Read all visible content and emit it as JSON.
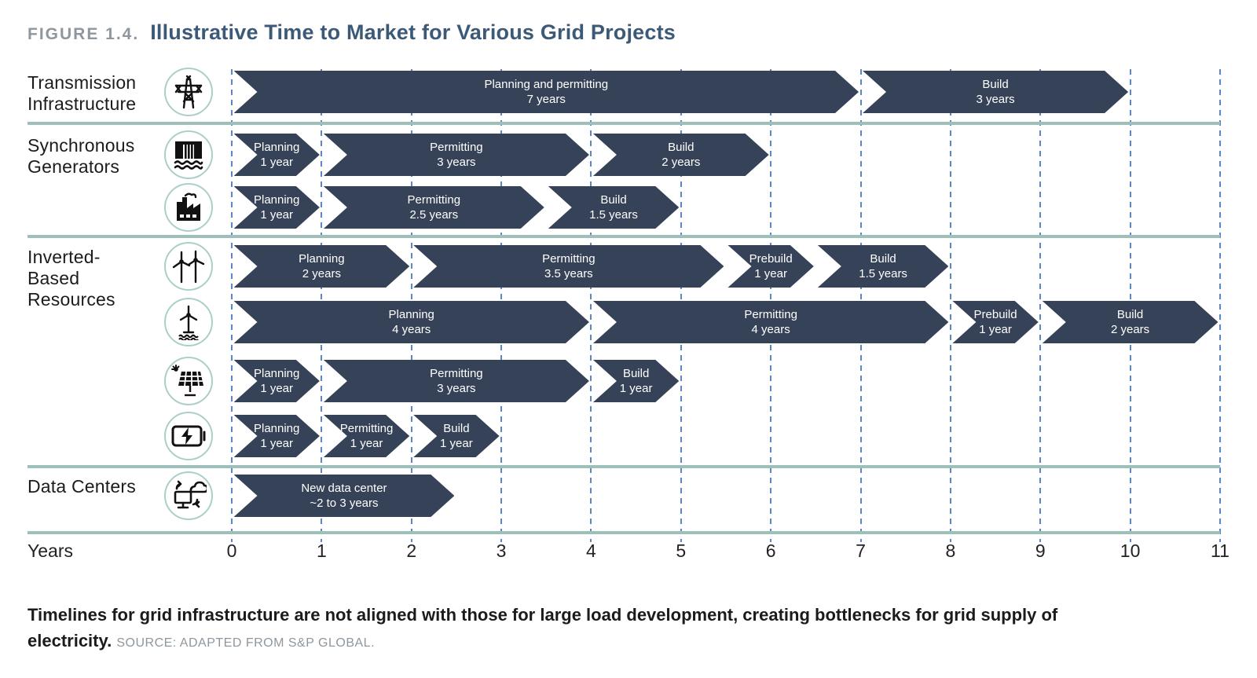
{
  "figure": {
    "label": "FIGURE 1.4.",
    "title": "Illustrative Time to Market for Various Grid Projects"
  },
  "axis": {
    "label": "Years",
    "ticks": [
      0,
      1,
      2,
      3,
      4,
      5,
      6,
      7,
      8,
      9,
      10,
      11
    ]
  },
  "caption": {
    "bold": "Timelines for grid infrastructure are not aligned with those for large load development, creating bottlenecks for grid supply of electricity.",
    "source": "SOURCE: ADAPTED FROM S&P GLOBAL."
  },
  "colors": {
    "bar": "#364257",
    "gridline": "#5b87c5",
    "separator": "#9fbfba",
    "title": "#3c5a78",
    "muted_gray": "#8e979e",
    "icon_ring": "#aacfc9"
  },
  "chart_data": {
    "type": "gantt-timeline",
    "x_unit": "years",
    "xlim": [
      0,
      11
    ],
    "grid": true,
    "groups": [
      {
        "label": "Transmission Infrastructure",
        "label_lines": [
          "Transmission",
          "Infrastructure"
        ],
        "rows": [
          {
            "icon": "transmission-tower-icon",
            "segments": [
              {
                "label": "Planning and permitting",
                "duration_label": "7 years",
                "start": 0,
                "end": 7
              },
              {
                "label": "Build",
                "duration_label": "3 years",
                "start": 7,
                "end": 10
              }
            ]
          }
        ]
      },
      {
        "label": "Synchronous Generators",
        "label_lines": [
          "Synchronous",
          "Generators"
        ],
        "rows": [
          {
            "icon": "hydro-dam-icon",
            "segments": [
              {
                "label": "Planning",
                "duration_label": "1 year",
                "start": 0,
                "end": 1
              },
              {
                "label": "Permitting",
                "duration_label": "3 years",
                "start": 1,
                "end": 4
              },
              {
                "label": "Build",
                "duration_label": "2 years",
                "start": 4,
                "end": 6
              }
            ]
          },
          {
            "icon": "factory-plant-icon",
            "segments": [
              {
                "label": "Planning",
                "duration_label": "1 year",
                "start": 0,
                "end": 1
              },
              {
                "label": "Permitting",
                "duration_label": "2.5 years",
                "start": 1,
                "end": 3.5
              },
              {
                "label": "Build",
                "duration_label": "1.5 years",
                "start": 3.5,
                "end": 5
              }
            ]
          }
        ]
      },
      {
        "label": "Inverted-Based Resources",
        "label_lines": [
          "Inverted-",
          "Based",
          "Resources"
        ],
        "rows": [
          {
            "icon": "onshore-wind-icon",
            "segments": [
              {
                "label": "Planning",
                "duration_label": "2 years",
                "start": 0,
                "end": 2
              },
              {
                "label": "Permitting",
                "duration_label": "3.5 years",
                "start": 2,
                "end": 5.5
              },
              {
                "label": "Prebuild",
                "duration_label": "1 year",
                "start": 5.5,
                "end": 6.5
              },
              {
                "label": "Build",
                "duration_label": "1.5 years",
                "start": 6.5,
                "end": 8
              }
            ]
          },
          {
            "icon": "offshore-wind-icon",
            "segments": [
              {
                "label": "Planning",
                "duration_label": "4 years",
                "start": 0,
                "end": 4
              },
              {
                "label": "Permitting",
                "duration_label": "4 years",
                "start": 4,
                "end": 8
              },
              {
                "label": "Prebuild",
                "duration_label": "1 year",
                "start": 8,
                "end": 9
              },
              {
                "label": "Build",
                "duration_label": "2 years",
                "start": 9,
                "end": 11
              }
            ]
          },
          {
            "icon": "solar-panel-icon",
            "segments": [
              {
                "label": "Planning",
                "duration_label": "1 year",
                "start": 0,
                "end": 1
              },
              {
                "label": "Permitting",
                "duration_label": "3 years",
                "start": 1,
                "end": 4
              },
              {
                "label": "Build",
                "duration_label": "1 year",
                "start": 4,
                "end": 5
              }
            ]
          },
          {
            "icon": "battery-storage-icon",
            "segments": [
              {
                "label": "Planning",
                "duration_label": "1 year",
                "start": 0,
                "end": 1
              },
              {
                "label": "Permitting",
                "duration_label": "1 year",
                "start": 1,
                "end": 2
              },
              {
                "label": "Build",
                "duration_label": "1 year",
                "start": 2,
                "end": 3
              }
            ]
          }
        ]
      },
      {
        "label": "Data Centers",
        "label_lines": [
          "Data Centers"
        ],
        "rows": [
          {
            "icon": "data-center-cloud-icon",
            "segments": [
              {
                "label": "New data center",
                "duration_label": "~2 to 3 years",
                "start": 0,
                "end": 2.5
              }
            ]
          }
        ]
      }
    ]
  }
}
